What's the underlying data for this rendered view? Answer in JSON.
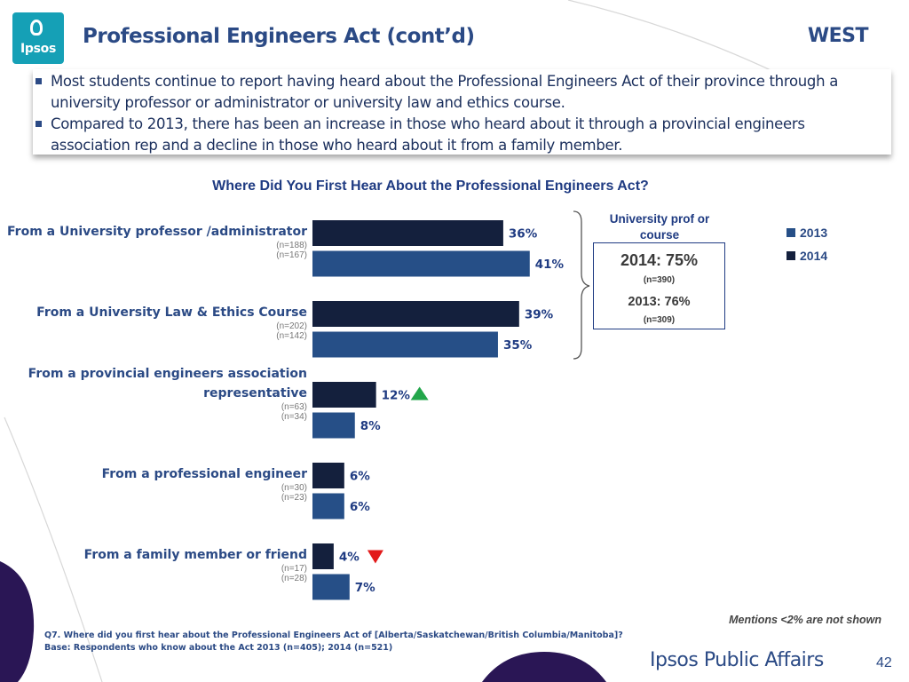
{
  "header": {
    "logo_text": "Ipsos",
    "title": "Professional Engineers Act (cont’d)",
    "region": "WEST"
  },
  "bullets": [
    "Most students continue to report having heard about the Professional Engineers Act of their province through a university professor or administrator or university law and ethics course.",
    "Compared to 2013, there has been an increase in those who heard about it through a provincial engineers association rep and a decline in those who heard about it from a family member."
  ],
  "colors": {
    "2014": "#14203d",
    "2013": "#264f87",
    "accent": "#2b4a85",
    "up": "#22a64a",
    "down": "#e21a1a"
  },
  "chart_data": {
    "type": "bar",
    "orientation": "horizontal",
    "title": "Where Did You First Hear About the Professional Engineers Act?",
    "categories": [
      "From a University professor /administrator",
      "From a University Law & Ethics Course",
      "From a provincial engineers association representative",
      "From a professional engineer",
      "From a family member or friend"
    ],
    "series": [
      {
        "name": "2014",
        "values": [
          36,
          39,
          12,
          6,
          4
        ],
        "n": [
          "(n=188)",
          "(n=202)",
          "(n=63)",
          "(n=30)",
          "(n=17)"
        ]
      },
      {
        "name": "2013",
        "values": [
          41,
          35,
          8,
          6,
          7
        ],
        "n": [
          "(n=167)",
          "(n=142)",
          "(n=34)",
          "(n=23)",
          "(n=28)"
        ]
      }
    ],
    "value_suffix": "%",
    "significance": [
      {
        "category": 2,
        "direction": "up"
      },
      {
        "category": 4,
        "direction": "down"
      }
    ],
    "legend": [
      "2013",
      "2014"
    ],
    "legend_position": "right"
  },
  "callout": {
    "heading": "University prof or course",
    "line1": "2014: 75%",
    "line1_n": "(n=390)",
    "line2": "2013: 76%",
    "line2_n": "(n=309)"
  },
  "note": "Mentions <2% are not shown",
  "footnote": {
    "question": "Q7. Where did you first hear about the Professional Engineers Act of [Alberta/Saskatchewan/British Columbia/Manitoba]?",
    "base": "Base: Respondents who know about the Act 2013 (n=405); 2014 (n=521)"
  },
  "brand": "Ipsos Public Affairs",
  "page_number": "42"
}
